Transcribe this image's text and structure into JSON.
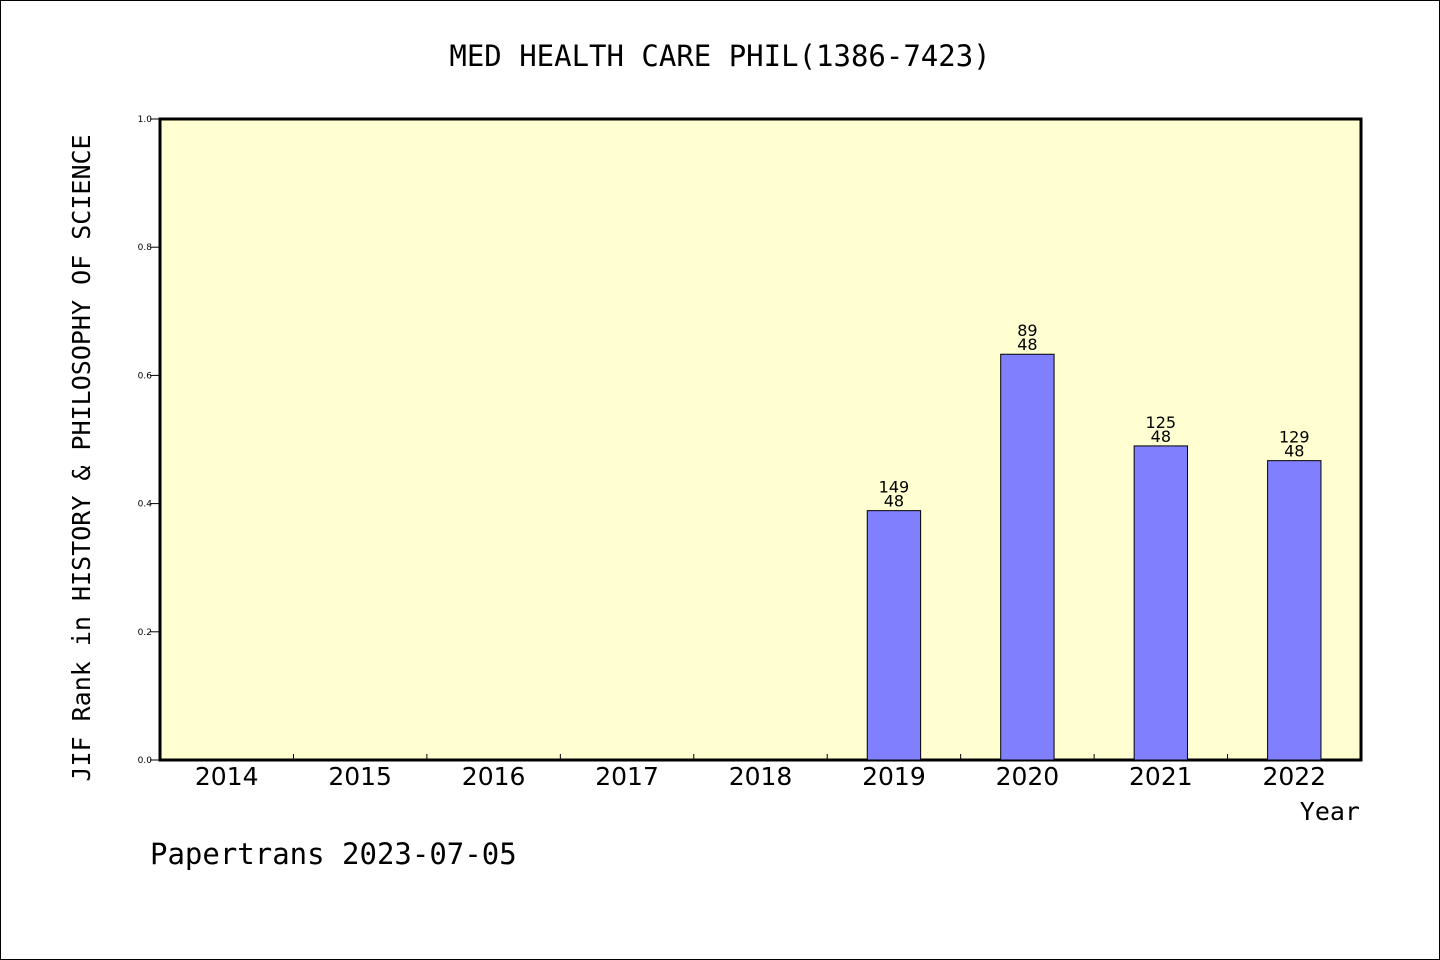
{
  "chart_data": {
    "type": "bar",
    "title": "MED HEALTH CARE PHIL(1386-7423)",
    "xlabel": "Year",
    "ylabel": "JIF Rank in HISTORY & PHILOSOPHY OF SCIENCE",
    "categories": [
      "2014",
      "2015",
      "2016",
      "2017",
      "2018",
      "2019",
      "2020",
      "2021",
      "2022"
    ],
    "values": [
      null,
      null,
      null,
      null,
      null,
      0.389,
      0.633,
      0.49,
      0.467
    ],
    "bar_labels": [
      null,
      null,
      null,
      null,
      null,
      {
        "top": "149",
        "bottom": "48"
      },
      {
        "top": "89",
        "bottom": "48"
      },
      {
        "top": "125",
        "bottom": "48"
      },
      {
        "top": "129",
        "bottom": "48"
      }
    ],
    "ylim": [
      0,
      1.0
    ],
    "yticks": [
      "0.0",
      "0.2",
      "0.4",
      "0.6",
      "0.8",
      "1.0"
    ],
    "grid": false,
    "colors": {
      "plot_background": "#ffffd2",
      "bar_fill": "#8080ff",
      "bar_stroke": "#000000"
    }
  },
  "footer": {
    "credit": "Papertrans 2023-07-05"
  }
}
